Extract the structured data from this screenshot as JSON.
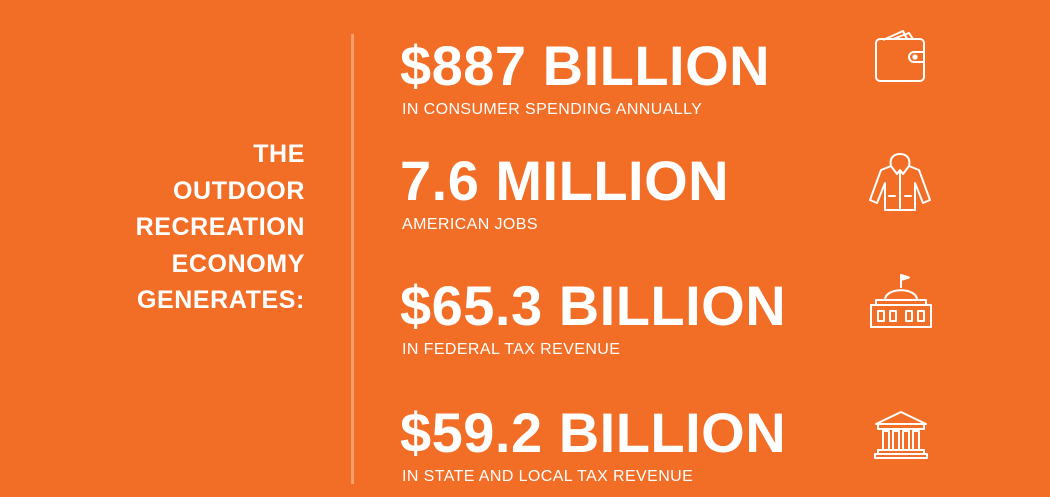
{
  "heading": [
    "THE",
    "OUTDOOR",
    "RECREATION",
    "ECONOMY",
    "GENERATES:"
  ],
  "stats": [
    {
      "value": "$887 BILLION",
      "label": "IN CONSUMER SPENDING ANNUALLY",
      "icon": "wallet-icon"
    },
    {
      "value": "7.6 MILLION",
      "label": "AMERICAN JOBS",
      "icon": "jacket-icon"
    },
    {
      "value": "$65.3 BILLION",
      "label": "IN FEDERAL TAX REVENUE",
      "icon": "capitol-building-icon"
    },
    {
      "value": "$59.2 BILLION",
      "label": "IN STATE AND LOCAL TAX REVENUE",
      "icon": "courthouse-icon"
    }
  ],
  "colors": {
    "background": "#f26d25",
    "text": "#ffffff",
    "divider": "#f7a06d"
  }
}
